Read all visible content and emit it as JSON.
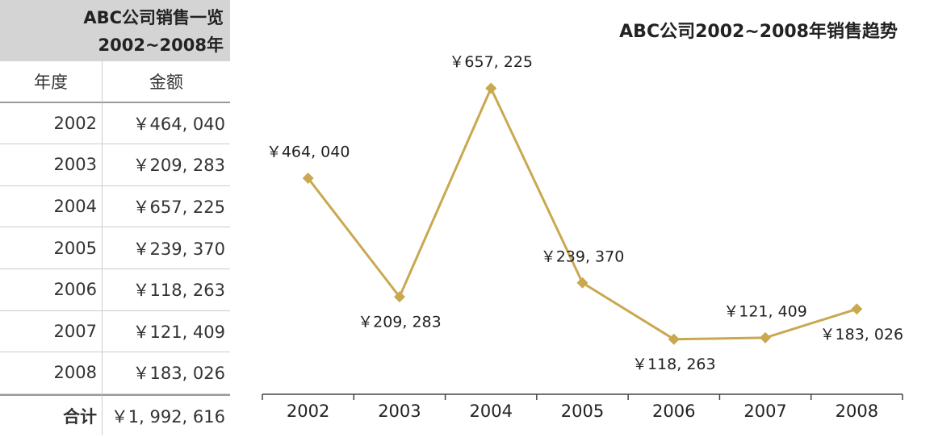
{
  "table": {
    "title": [
      "ABC公司销售一览",
      "2002~2008年"
    ],
    "header": [
      "年度",
      "金额"
    ],
    "rows": [
      [
        "2002",
        "￥464, 040"
      ],
      [
        "2003",
        "￥209, 283"
      ],
      [
        "2004",
        "￥657, 225"
      ],
      [
        "2005",
        "￥239, 370"
      ],
      [
        "2006",
        "￥118, 263"
      ],
      [
        "2007",
        "￥121, 409"
      ],
      [
        "2008",
        "￥183, 026"
      ]
    ],
    "total": [
      "合计",
      "￥1, 992, 616"
    ]
  },
  "chart_data": {
    "type": "line",
    "title": "ABC公司2002~2008年销售趋势",
    "categories": [
      "2002",
      "2003",
      "2004",
      "2005",
      "2006",
      "2007",
      "2008"
    ],
    "values": [
      464040,
      209283,
      657225,
      239370,
      118263,
      121409,
      183026
    ],
    "value_labels": [
      "￥464, 040",
      "￥209, 283",
      "￥657, 225",
      "￥239, 370",
      "￥118, 263",
      "￥121, 409",
      "￥183, 026"
    ],
    "color": "#c9a84f",
    "ylim": [
      0,
      800000
    ]
  }
}
